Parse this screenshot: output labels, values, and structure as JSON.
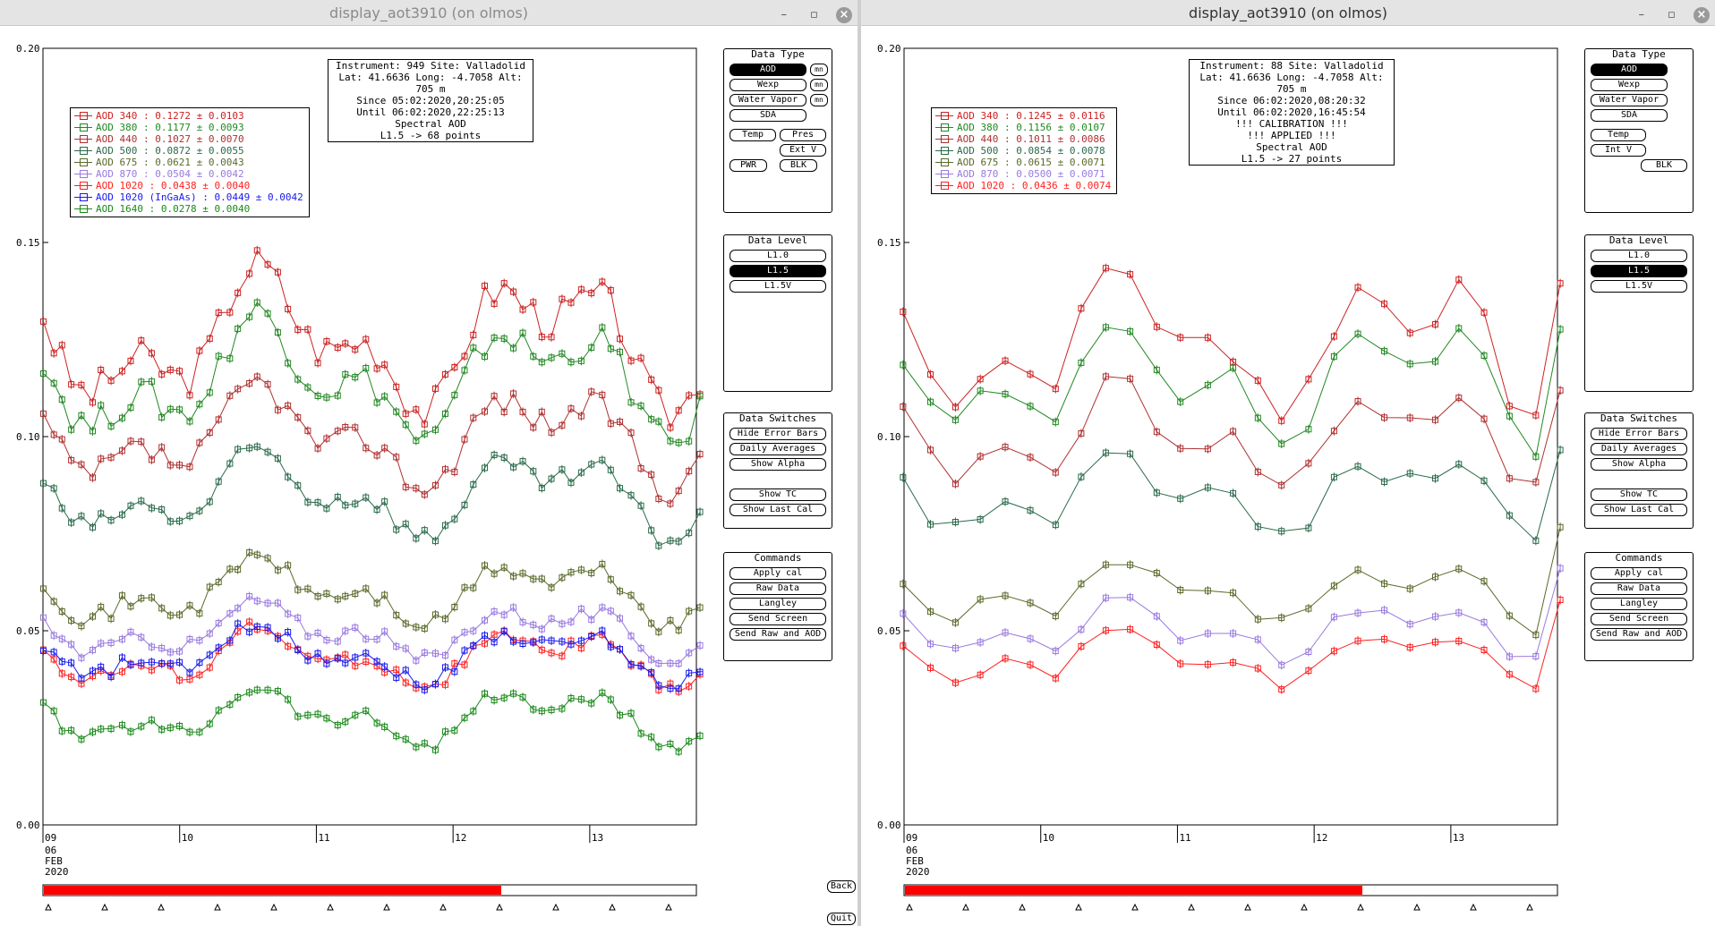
{
  "left": {
    "title": "display_aot3910 (on olmos)",
    "info": [
      "Instrument: 949 Site: Valladolid",
      "Lat: 41.6636 Long: -4.7058 Alt: 705 m",
      "Since 05:02:2020,20:25:05",
      "Until 06:02:2020,22:25:13",
      "Spectral AOD",
      "L1.5 -> 68 points"
    ],
    "legend": [
      {
        "label": "AOD 340   : 0.1272 ± 0.0103",
        "color": "#cc2222"
      },
      {
        "label": "AOD 380   : 0.1177 ± 0.0093",
        "color": "#228822"
      },
      {
        "label": "AOD 440   : 0.1027 ± 0.0070",
        "color": "#b03030"
      },
      {
        "label": "AOD 500   : 0.0872 ± 0.0055",
        "color": "#2a6a4a"
      },
      {
        "label": "AOD 675   : 0.0621 ± 0.0043",
        "color": "#5a6a2a"
      },
      {
        "label": "AOD 870   : 0.0504 ± 0.0042",
        "color": "#9a7ae0"
      },
      {
        "label": "AOD 1020  : 0.0438 ± 0.0040",
        "color": "#ff2020"
      },
      {
        "label": "AOD 1020 (InGaAs)  : 0.0449 ± 0.0042",
        "color": "#1a1aee"
      },
      {
        "label": "AOD 1640  : 0.0278 ± 0.0040",
        "color": "#1a8a1a"
      }
    ],
    "data_type_buttons": [
      "AOD",
      "Wexp",
      "Water Vapor",
      "SDA",
      "Temp",
      "Pres",
      "Ext V",
      "PWR",
      "BLK"
    ],
    "mini_label": "mn",
    "data_level_buttons": [
      "L1.0",
      "L1.5",
      "L1.5V"
    ],
    "data_switches": [
      "Hide Error Bars",
      "Daily Averages",
      "Show Alpha",
      "Show TC",
      "Show Last Cal"
    ],
    "commands": [
      "Apply cal",
      "Raw Data",
      "Langley",
      "Send Screen",
      "Send Raw and AOD"
    ],
    "back_label": "Back",
    "quit_label": "Quit"
  },
  "right": {
    "title": "display_aot3910 (on olmos)",
    "info": [
      "Instrument: 88 Site: Valladolid",
      "Lat: 41.6636 Long: -4.7058 Alt: 705 m",
      "Since 06:02:2020,08:20:32",
      "Until 06:02:2020,16:45:54",
      "!!! CALIBRATION !!!",
      "!!!   APPLIED   !!!",
      "Spectral AOD",
      "L1.5 -> 27 points"
    ],
    "legend": [
      {
        "label": "AOD 340   : 0.1245 ± 0.0116",
        "color": "#cc2222"
      },
      {
        "label": "AOD 380   : 0.1156 ± 0.0107",
        "color": "#228822"
      },
      {
        "label": "AOD 440   : 0.1011 ± 0.0086",
        "color": "#b03030"
      },
      {
        "label": "AOD 500   : 0.0854 ± 0.0078",
        "color": "#2a6a4a"
      },
      {
        "label": "AOD 675   : 0.0615 ± 0.0071",
        "color": "#5a6a2a"
      },
      {
        "label": "AOD 870   : 0.0500 ± 0.0071",
        "color": "#9a7ae0"
      },
      {
        "label": "AOD 1020  : 0.0436 ± 0.0074",
        "color": "#ff2020"
      }
    ],
    "data_type_buttons": [
      "AOD",
      "Wexp",
      "Water Vapor",
      "SDA",
      "Temp",
      "Int V",
      "BLK"
    ],
    "data_level_buttons": [
      "L1.0",
      "L1.5",
      "L1.5V"
    ],
    "data_switches": [
      "Hide Error Bars",
      "Daily Averages",
      "Show Alpha",
      "Show TC",
      "Show Last Cal"
    ],
    "commands": [
      "Apply cal",
      "Raw Data",
      "Langley",
      "Send Screen",
      "Send Raw and AOD"
    ]
  },
  "panel_titles": {
    "data_type": "Data Type",
    "data_level": "Data Level",
    "data_switches": "Data Switches",
    "commands": "Commands"
  },
  "axis": {
    "y_ticks": [
      "0.20",
      "0.15",
      "0.10",
      "0.05",
      "0.00"
    ],
    "x_ticks": [
      "09",
      "10",
      "11",
      "12",
      "13"
    ],
    "date_lines": [
      "06",
      "FEB",
      "2020"
    ]
  },
  "chart_data": [
    {
      "type": "line",
      "ylim": [
        0,
        0.2
      ],
      "x_days": [
        9,
        13.8
      ],
      "series_left": true
    },
    {
      "type": "line",
      "ylim": [
        0,
        0.2
      ],
      "x_days": [
        9,
        13.8
      ],
      "series_left": false
    }
  ]
}
